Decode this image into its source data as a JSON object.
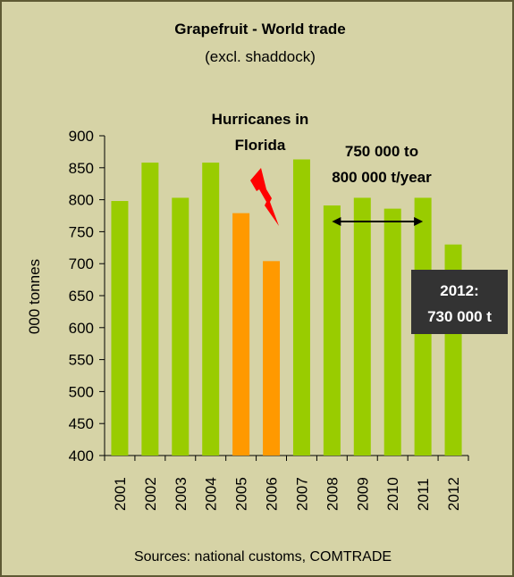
{
  "chart_data": {
    "type": "bar",
    "title": "Grapefruit - World trade",
    "subtitle": "(excl. shaddock)",
    "xlabel": "",
    "ylabel": "000 tonnes",
    "ylim": [
      400,
      900
    ],
    "yticks": [
      400,
      450,
      500,
      550,
      600,
      650,
      700,
      750,
      800,
      850,
      900
    ],
    "categories": [
      "2001",
      "2002",
      "2003",
      "2004",
      "2005",
      "2006",
      "2007",
      "2008",
      "2009",
      "2010",
      "2011",
      "2012"
    ],
    "values": [
      798,
      858,
      803,
      858,
      779,
      704,
      863,
      791,
      803,
      786,
      803,
      730
    ],
    "highlighted": [
      "2005",
      "2006"
    ],
    "grid": false,
    "annotations": {
      "hurricane": "Hurricanes in\nFlorida",
      "range": "750 000 to\n800 000 t/year",
      "last_value": "2012:\n730 000 t"
    },
    "source": "Sources: national customs, COMTRADE"
  },
  "colors": {
    "background": "#d6d3a6",
    "frame": "#5f5a34",
    "bar": "#99cc00",
    "bar_highlight": "#ff9900",
    "lightning": "#ff0000",
    "callout_box": "#333333",
    "callout_text": "#ffffff",
    "text": "#000000"
  },
  "icons": {
    "lightning": "lightning-bolt-icon"
  }
}
